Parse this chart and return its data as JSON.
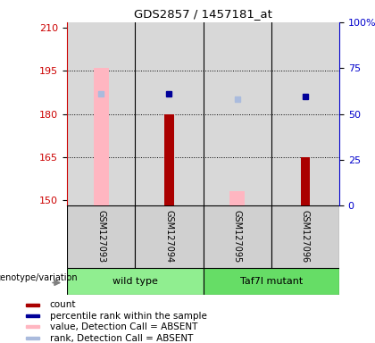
{
  "title": "GDS2857 / 1457181_at",
  "samples": [
    "GSM127093",
    "GSM127094",
    "GSM127095",
    "GSM127096"
  ],
  "ylim_left": [
    148,
    212
  ],
  "ylim_right": [
    0,
    100
  ],
  "yticks_left": [
    150,
    165,
    180,
    195,
    210
  ],
  "yticks_right": [
    0,
    25,
    50,
    75,
    100
  ],
  "yticklabels_right": [
    "0",
    "25",
    "50",
    "75",
    "100%"
  ],
  "count_bars": {
    "values": [
      null,
      180,
      null,
      165
    ],
    "color": "#AA0000"
  },
  "value_absent_bars": {
    "values": [
      196,
      null,
      153,
      null
    ],
    "color": "#FFB6C1"
  },
  "percentile_rank_dots": {
    "values": [
      null,
      187,
      null,
      186
    ],
    "color": "#000099"
  },
  "rank_absent_dots": {
    "values": [
      187,
      null,
      185,
      null
    ],
    "color": "#AABBDD"
  },
  "left_axis_color": "#CC0000",
  "right_axis_color": "#0000CC",
  "wt_color": "#90EE90",
  "mut_color": "#66DD66",
  "gray_color": "#C8C8C8",
  "genotype_label": "genotype/variation",
  "group_labels": [
    "wild type",
    "Taf7l mutant"
  ],
  "legend_items": [
    {
      "label": "count",
      "color": "#AA0000"
    },
    {
      "label": "percentile rank within the sample",
      "color": "#000099"
    },
    {
      "label": "value, Detection Call = ABSENT",
      "color": "#FFB6C1"
    },
    {
      "label": "rank, Detection Call = ABSENT",
      "color": "#AABBDD"
    }
  ]
}
